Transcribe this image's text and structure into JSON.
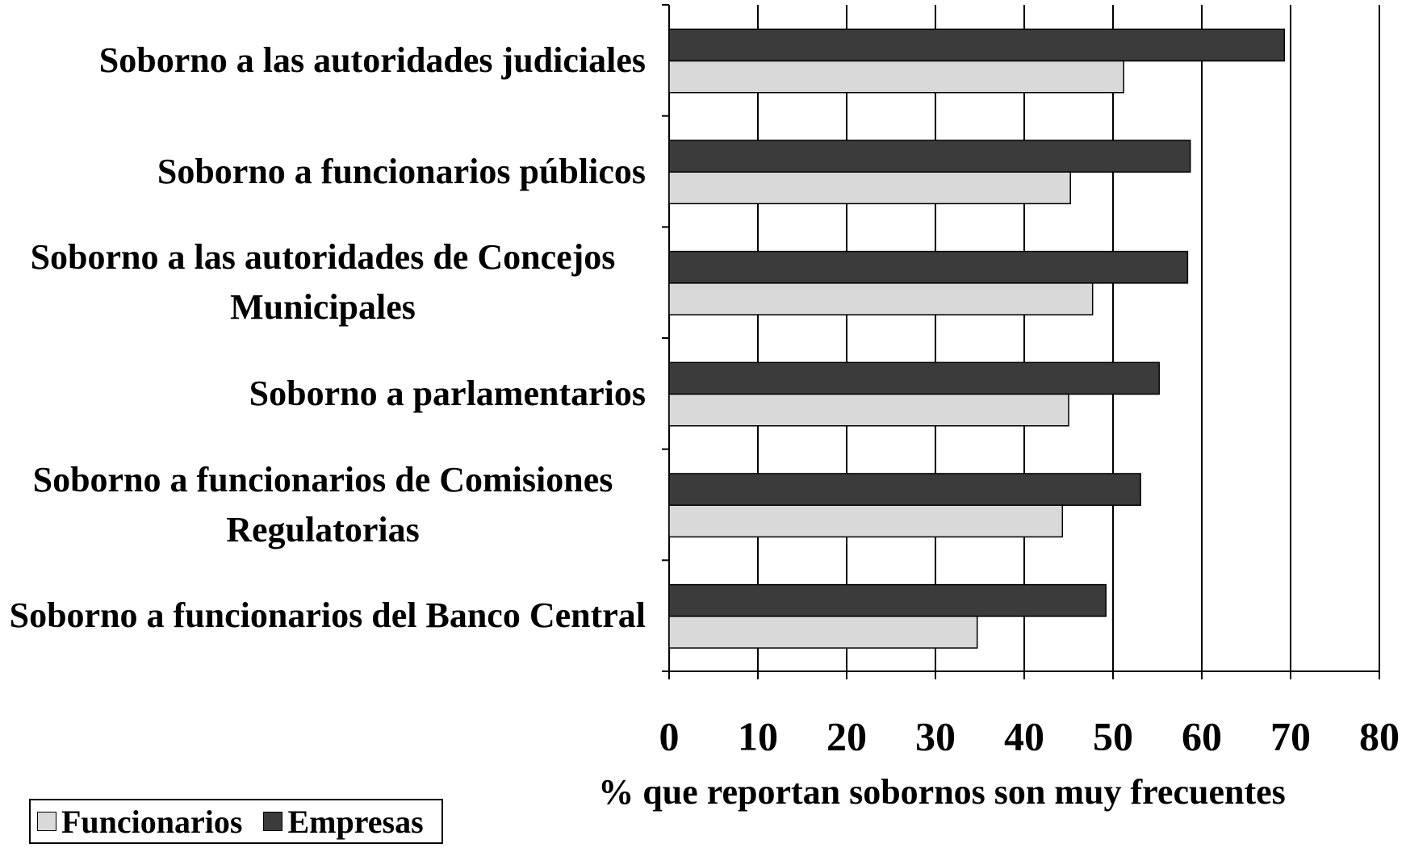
{
  "chart_data": {
    "type": "bar",
    "orientation": "horizontal",
    "categories": [
      "Soborno a las autoridades judiciales",
      "Soborno a funcionarios públicos",
      "Soborno a las autoridades de Concejos Municipales",
      "Soborno a parlamentarios",
      "Soborno a funcionarios de Comisiones Regulatorias",
      "Soborno a funcionarios del Banco Central"
    ],
    "series": [
      {
        "name": "Funcionarios",
        "color": "#d9d9d9",
        "values": [
          51.2,
          45.2,
          47.7,
          45.0,
          44.3,
          34.7
        ]
      },
      {
        "name": "Empresas",
        "color": "#3b3b3b",
        "values": [
          69.3,
          58.7,
          58.4,
          55.2,
          53.1,
          49.2
        ]
      }
    ],
    "x_label": "% que reportan sobornos son muy frecuentes",
    "xlim": [
      0,
      80
    ],
    "xticks": [
      0,
      10,
      20,
      30,
      40,
      50,
      60,
      70,
      80
    ],
    "grid": true,
    "legend": "bottom-left"
  }
}
